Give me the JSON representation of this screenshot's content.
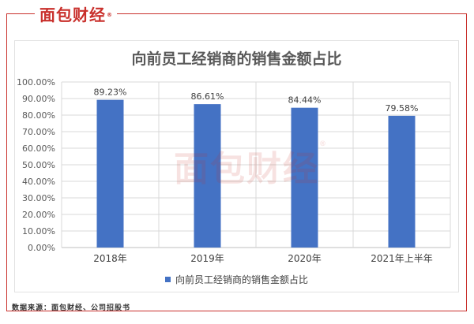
{
  "logo": {
    "text": "面包财经",
    "mark": "®"
  },
  "watermark": {
    "text": "面包财经",
    "mark": "®"
  },
  "source": "数据来源：面包财经、公司招股书",
  "chart_data": {
    "type": "bar",
    "title": "向前员工经销商的销售金额占比",
    "categories": [
      "2018年",
      "2019年",
      "2020年",
      "2021年上半年"
    ],
    "series": [
      {
        "name": "向前员工经销商的销售金额占比",
        "values": [
          89.23,
          86.61,
          84.44,
          79.58
        ],
        "color": "#4472c4"
      }
    ],
    "data_labels": [
      "89.23%",
      "86.61%",
      "84.44%",
      "79.58%"
    ],
    "ylim": [
      0,
      100
    ],
    "yticks": [
      "0.00%",
      "10.00%",
      "20.00%",
      "30.00%",
      "40.00%",
      "50.00%",
      "60.00%",
      "70.00%",
      "80.00%",
      "90.00%",
      "100.00%"
    ],
    "xlabel": "",
    "ylabel": "",
    "grid": true,
    "legend": "bottom"
  }
}
